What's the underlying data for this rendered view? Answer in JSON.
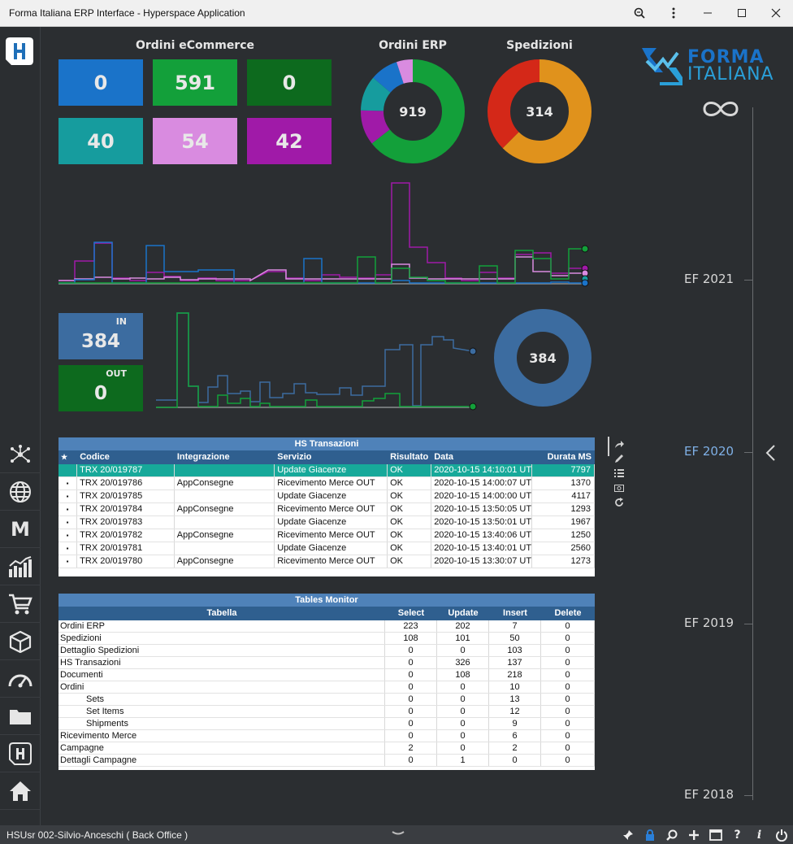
{
  "window": {
    "title": "Forma Italiana ERP Interface - Hyperspace Application"
  },
  "brand": {
    "line1": "FORMA",
    "line2": "ITALIANA"
  },
  "ecommerce": {
    "title": "Ordini eCommerce",
    "tiles": [
      {
        "value": "0",
        "color": "#1a73c9"
      },
      {
        "value": "591",
        "color": "#13a03a"
      },
      {
        "value": "0",
        "color": "#0d6a1e"
      },
      {
        "value": "40",
        "color": "#169c9e"
      },
      {
        "value": "54",
        "color": "#d98be0"
      },
      {
        "value": "42",
        "color": "#a01aa8"
      }
    ]
  },
  "ordini_erp": {
    "title": "Ordini ERP",
    "total": "919",
    "segments": [
      {
        "value": 591,
        "color": "#13a03a"
      },
      {
        "value": 100,
        "color": "#a01aa8"
      },
      {
        "value": 100,
        "color": "#169c9e"
      },
      {
        "value": 80,
        "color": "#1a73c9"
      },
      {
        "value": 48,
        "color": "#d98be0"
      }
    ]
  },
  "spedizioni": {
    "title": "Spedizioni",
    "total": "314",
    "segments": [
      {
        "value": 196,
        "color": "#e0921c"
      },
      {
        "value": 118,
        "color": "#d42818"
      }
    ]
  },
  "inout": {
    "in_label": "IN",
    "in_value": "384",
    "out_label": "OUT",
    "out_value": "0",
    "donut_total": "384"
  },
  "timeline": {
    "items": [
      "EF 2021",
      "EF 2020",
      "EF 2019",
      "EF 2018"
    ],
    "active": "EF 2020"
  },
  "hs_transazioni": {
    "title": "HS Transazioni",
    "columns": [
      "Codice",
      "Integrazione",
      "Servizio",
      "Risultato",
      "Data",
      "Durata MS"
    ],
    "rows": [
      [
        "TRX 20/019787",
        "",
        "Update Giacenze",
        "OK",
        "2020-10-15 14:10:01 UTC",
        "7797"
      ],
      [
        "TRX 20/019786",
        "AppConsegne",
        "Ricevimento Merce OUT",
        "OK",
        "2020-10-15 14:00:07 UTC",
        "1370"
      ],
      [
        "TRX 20/019785",
        "",
        "Update Giacenze",
        "OK",
        "2020-10-15 14:00:00 UTC",
        "4117"
      ],
      [
        "TRX 20/019784",
        "AppConsegne",
        "Ricevimento Merce OUT",
        "OK",
        "2020-10-15 13:50:05 UTC",
        "1293"
      ],
      [
        "TRX 20/019783",
        "",
        "Update Giacenze",
        "OK",
        "2020-10-15 13:50:01 UTC",
        "1967"
      ],
      [
        "TRX 20/019782",
        "AppConsegne",
        "Ricevimento Merce OUT",
        "OK",
        "2020-10-15 13:40:06 UTC",
        "1250"
      ],
      [
        "TRX 20/019781",
        "",
        "Update Giacenze",
        "OK",
        "2020-10-15 13:40:01 UTC",
        "2560"
      ],
      [
        "TRX 20/019780",
        "AppConsegne",
        "Ricevimento Merce OUT",
        "OK",
        "2020-10-15 13:30:07 UTC",
        "1273"
      ]
    ]
  },
  "tables_monitor": {
    "title": "Tables Monitor",
    "columns": [
      "Tabella",
      "Select",
      "Update",
      "Insert",
      "Delete"
    ],
    "rows": [
      [
        "Ordini ERP",
        "223",
        "202",
        "7",
        "0"
      ],
      [
        "Spedizioni",
        "108",
        "101",
        "50",
        "0"
      ],
      [
        "Dettaglio Spedizioni",
        "0",
        "0",
        "103",
        "0"
      ],
      [
        "HS Transazioni",
        "0",
        "326",
        "137",
        "0"
      ],
      [
        "Documenti",
        "0",
        "108",
        "218",
        "0"
      ],
      [
        "Ordini",
        "0",
        "0",
        "10",
        "0"
      ],
      [
        "Sets",
        "0",
        "0",
        "13",
        "0"
      ],
      [
        "Set Items",
        "0",
        "0",
        "12",
        "0"
      ],
      [
        "Shipments",
        "0",
        "0",
        "9",
        "0"
      ],
      [
        "Ricevimento Merce",
        "0",
        "0",
        "6",
        "0"
      ],
      [
        "Campagne",
        "2",
        "0",
        "2",
        "0"
      ],
      [
        "Dettagli Campagne",
        "0",
        "1",
        "0",
        "0"
      ]
    ],
    "indented": [
      6,
      7,
      8
    ]
  },
  "statusbar": {
    "user": "HSUsr 002-Silvio-Anceschi ( Back Office )"
  },
  "sidebar_icons": [
    "network-icon",
    "globe-icon",
    "m-icon",
    "chart-icon",
    "cart-icon",
    "box-icon",
    "gauge-icon",
    "folder-icon",
    "h-logo-icon",
    "home-icon"
  ]
}
